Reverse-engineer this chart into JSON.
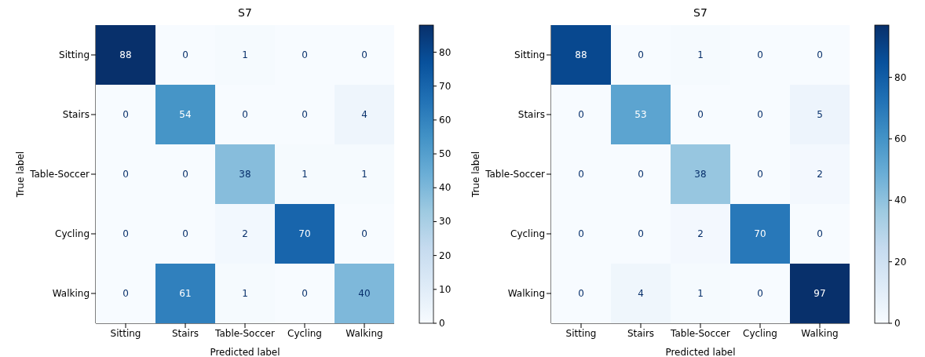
{
  "chart_data": [
    {
      "type": "heatmap",
      "title": "S7",
      "xlabel": "Predicted label",
      "ylabel": "True label",
      "categories": [
        "Sitting",
        "Stairs",
        "Table-Soccer",
        "Cycling",
        "Walking"
      ],
      "y_categories": [
        "Sitting",
        "Stairs",
        "Table-Soccer",
        "Cycling",
        "Walking"
      ],
      "cells": [
        [
          88,
          0,
          1,
          0,
          0
        ],
        [
          0,
          54,
          0,
          0,
          4
        ],
        [
          0,
          0,
          38,
          1,
          1
        ],
        [
          0,
          0,
          2,
          70,
          0
        ],
        [
          0,
          61,
          1,
          0,
          40
        ]
      ],
      "data_labels": true,
      "clim": [
        0,
        88
      ],
      "cticks": [
        0,
        10,
        20,
        30,
        40,
        50,
        60,
        70,
        80
      ]
    },
    {
      "type": "heatmap",
      "title": "S7",
      "xlabel": "Predicted label",
      "ylabel": "True label",
      "categories": [
        "Sitting",
        "Stairs",
        "Table-Soccer",
        "Cycling",
        "Walking"
      ],
      "y_categories": [
        "Sitting",
        "Stairs",
        "Table-Soccer",
        "Cycling",
        "Walking"
      ],
      "cells": [
        [
          88,
          0,
          1,
          0,
          0
        ],
        [
          0,
          53,
          0,
          0,
          5
        ],
        [
          0,
          0,
          38,
          0,
          2
        ],
        [
          0,
          0,
          2,
          70,
          0
        ],
        [
          0,
          4,
          1,
          0,
          97
        ]
      ],
      "data_labels": true,
      "clim": [
        0,
        97
      ],
      "cticks": [
        0,
        20,
        40,
        60,
        80
      ]
    }
  ]
}
